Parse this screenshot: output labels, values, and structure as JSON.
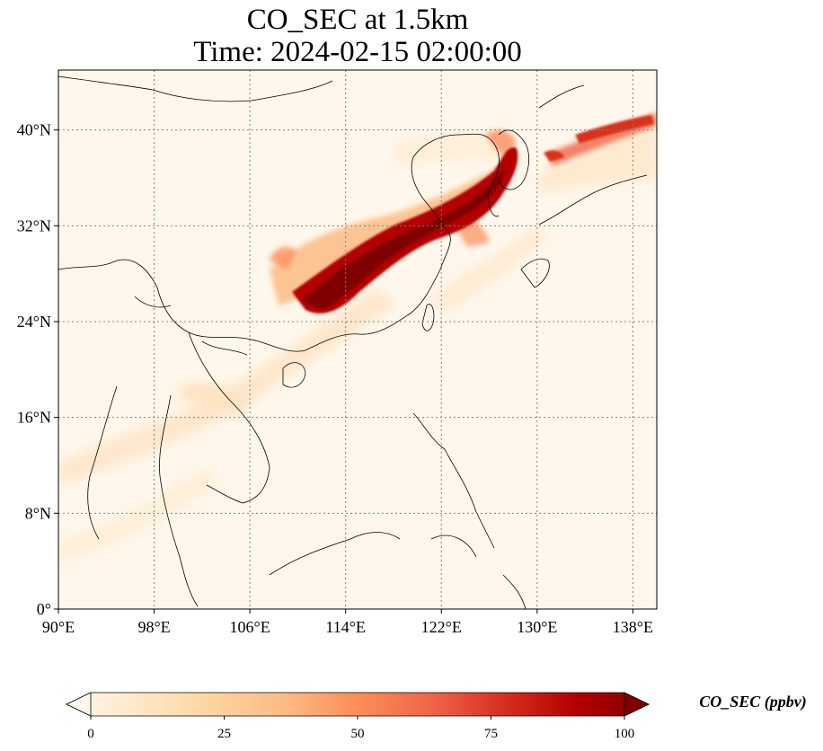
{
  "title": {
    "line1": "CO_SEC at 1.5km",
    "line2": "Time: 2024-02-15 02:00:00"
  },
  "map": {
    "extent": {
      "lon": [
        90,
        140
      ],
      "lat": [
        0,
        45
      ]
    },
    "longitude_ticks": [
      {
        "value": 90,
        "label": "90°E"
      },
      {
        "value": 98,
        "label": "98°E"
      },
      {
        "value": 106,
        "label": "106°E"
      },
      {
        "value": 114,
        "label": "114°E"
      },
      {
        "value": 122,
        "label": "122°E"
      },
      {
        "value": 130,
        "label": "130°E"
      },
      {
        "value": 138,
        "label": "138°E"
      }
    ],
    "latitude_ticks": [
      {
        "value": 0,
        "label": "0°"
      },
      {
        "value": 8,
        "label": "8°N"
      },
      {
        "value": 16,
        "label": "16°N"
      },
      {
        "value": 24,
        "label": "24°N"
      },
      {
        "value": 32,
        "label": "32°N"
      },
      {
        "value": 40,
        "label": "40°N"
      }
    ],
    "gridlines": "dotted",
    "colormap": "OrRd",
    "colors": {
      "low": "#fff7ec",
      "light": "#fdd49e",
      "mid": "#fc8d59",
      "high": "#d7301f",
      "max": "#7f0000",
      "coast": "#000000",
      "grid": "#808080"
    }
  },
  "colorbar": {
    "label": "CO_SEC (ppbv)",
    "min": 0,
    "max": 100,
    "extend": "both",
    "ticks": [
      {
        "value": 0,
        "label": "0"
      },
      {
        "value": 25,
        "label": "25"
      },
      {
        "value": 50,
        "label": "50"
      },
      {
        "value": 75,
        "label": "75"
      },
      {
        "value": 100,
        "label": "100"
      }
    ]
  }
}
